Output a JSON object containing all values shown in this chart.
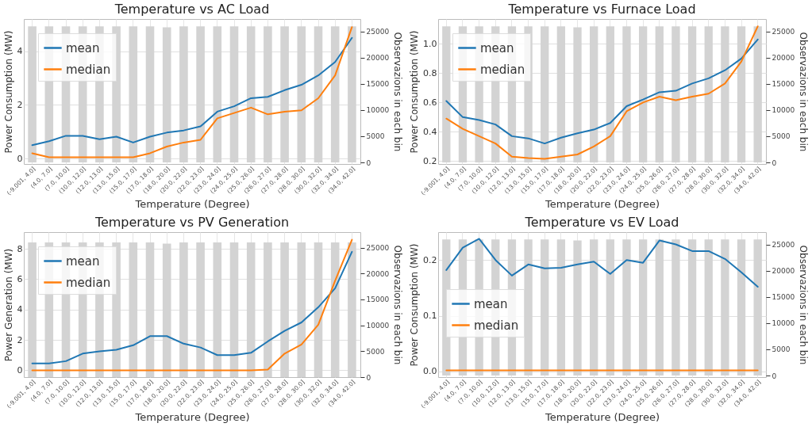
{
  "chart_data": [
    {
      "type": "line",
      "title": "Temperature   vs   AC Load",
      "xlabel": "Temperature (Degree)",
      "ylabel": "Power Consumption (MW)",
      "y2label": "Observazions in each bin",
      "categories": [
        "(-9.001, 4.0]",
        "(4.0, 7.0]",
        "(7.0, 10.0]",
        "(10.0, 12.0]",
        "(12.0, 13.0]",
        "(13.0, 15.0]",
        "(15.0, 17.0]",
        "(17.0, 18.0]",
        "(18.0, 20.0]",
        "(20.0, 22.0]",
        "(22.0, 23.0]",
        "(23.0, 24.0]",
        "(24.0, 25.0]",
        "(25.0, 26.0]",
        "(26.0, 27.0]",
        "(27.0, 28.0]",
        "(28.0, 30.0]",
        "(30.0, 32.0]",
        "(32.0, 34.0]",
        "(34.0, 42.0]"
      ],
      "series": [
        {
          "type": "bar",
          "axis": "y2",
          "color": "#d3d3d3",
          "values": [
            26000,
            26000,
            26000,
            26000,
            26000,
            26000,
            26000,
            26000,
            25800,
            26000,
            26000,
            26000,
            26000,
            26000,
            26000,
            26000,
            26000,
            26000,
            26000,
            26000
          ]
        },
        {
          "name": "mean",
          "color": "#1f77b4",
          "values": [
            0.5,
            0.65,
            0.85,
            0.85,
            0.72,
            0.82,
            0.6,
            0.82,
            0.97,
            1.05,
            1.2,
            1.75,
            1.95,
            2.25,
            2.3,
            2.55,
            2.75,
            3.1,
            3.6,
            4.5
          ]
        },
        {
          "name": "median",
          "color": "#ff7f0e",
          "values": [
            0.2,
            0.05,
            0.05,
            0.05,
            0.05,
            0.05,
            0.05,
            0.2,
            0.45,
            0.6,
            0.7,
            1.5,
            1.7,
            1.9,
            1.65,
            1.75,
            1.8,
            2.25,
            3.1,
            4.9
          ]
        }
      ],
      "ylim": [
        -0.2,
        5.2
      ],
      "yticks": [
        0,
        2,
        4
      ],
      "y2lim": [
        -300,
        27400
      ],
      "y2ticks": [
        0,
        5000,
        10000,
        15000,
        20000,
        25000
      ],
      "grid": true,
      "legend": "top left"
    },
    {
      "type": "line",
      "title": "Temperature   vs   Furnace Load",
      "xlabel": "Temperature (Degree)",
      "ylabel": "Power Consumption (MW)",
      "y2label": "Observazions in each bin",
      "categories": [
        "(-9.001, 4.0]",
        "(4.0, 7.0]",
        "(7.0, 10.0]",
        "(10.0, 12.0]",
        "(12.0, 13.0]",
        "(13.0, 15.0]",
        "(15.0, 17.0]",
        "(17.0, 18.0]",
        "(18.0, 20.0]",
        "(20.0, 22.0]",
        "(22.0, 23.0]",
        "(23.0, 24.0]",
        "(24.0, 25.0]",
        "(25.0, 26.0]",
        "(26.0, 27.0]",
        "(27.0, 28.0]",
        "(28.0, 30.0]",
        "(30.0, 32.0]",
        "(32.0, 34.0]",
        "(34.0, 42.0]"
      ],
      "series": [
        {
          "type": "bar",
          "axis": "y2",
          "color": "#d3d3d3",
          "values": [
            26000,
            26000,
            26000,
            26000,
            26000,
            26000,
            26000,
            26000,
            25800,
            26000,
            26000,
            26000,
            26000,
            26000,
            26000,
            26000,
            26000,
            26000,
            26000,
            26000
          ]
        },
        {
          "name": "mean",
          "color": "#1f77b4",
          "values": [
            0.61,
            0.5,
            0.48,
            0.45,
            0.37,
            0.355,
            0.32,
            0.36,
            0.39,
            0.415,
            0.46,
            0.575,
            0.62,
            0.67,
            0.68,
            0.73,
            0.765,
            0.82,
            0.9,
            1.03
          ]
        },
        {
          "name": "median",
          "color": "#ff7f0e",
          "values": [
            0.49,
            0.42,
            0.37,
            0.32,
            0.23,
            0.22,
            0.215,
            0.23,
            0.245,
            0.3,
            0.37,
            0.54,
            0.6,
            0.64,
            0.615,
            0.64,
            0.66,
            0.73,
            0.88,
            1.12
          ]
        }
      ],
      "ylim": [
        0.18,
        1.17
      ],
      "yticks": [
        0.2,
        0.4,
        0.6,
        0.8,
        {
          "value": 1,
          "label": "1.0"
        }
      ],
      "y2lim": [
        -300,
        27400
      ],
      "y2ticks": [
        0,
        5000,
        10000,
        15000,
        20000,
        25000
      ],
      "grid": true,
      "legend": "top left"
    },
    {
      "type": "line",
      "title": "Temperature   vs   PV Generation",
      "xlabel": "Temperature (Degree)",
      "ylabel": "Power Generation (MW)",
      "y2label": "Observazions in each bin",
      "categories": [
        "(-9.001, 4.0]",
        "(4.0, 7.0]",
        "(7.0, 10.0]",
        "(10.0, 12.0]",
        "(12.0, 13.0]",
        "(13.0, 15.0]",
        "(15.0, 17.0]",
        "(17.0, 18.0]",
        "(18.0, 20.0]",
        "(20.0, 22.0]",
        "(22.0, 23.0]",
        "(23.0, 24.0]",
        "(24.0, 25.0]",
        "(25.0, 26.0]",
        "(26.0, 27.0]",
        "(27.0, 28.0]",
        "(28.0, 30.0]",
        "(30.0, 32.0]",
        "(32.0, 34.0]",
        "(34.0, 42.0]"
      ],
      "series": [
        {
          "type": "bar",
          "axis": "y2",
          "color": "#d3d3d3",
          "values": [
            26000,
            26000,
            26000,
            26000,
            26000,
            26000,
            26000,
            26000,
            25800,
            26000,
            26000,
            26000,
            26000,
            26000,
            26000,
            26000,
            26000,
            26000,
            26000,
            26000
          ]
        },
        {
          "name": "mean",
          "color": "#1f77b4",
          "values": [
            0.45,
            0.45,
            0.6,
            1.1,
            1.25,
            1.35,
            1.65,
            2.25,
            2.25,
            1.75,
            1.5,
            1.0,
            1.0,
            1.15,
            1.9,
            2.6,
            3.15,
            4.15,
            5.4,
            7.8
          ]
        },
        {
          "name": "median",
          "color": "#ff7f0e",
          "values": [
            0,
            0,
            0,
            0,
            0,
            0,
            0,
            0,
            0,
            0,
            0,
            0,
            0,
            0,
            0.05,
            1.1,
            1.7,
            3.0,
            5.9,
            8.6
          ]
        }
      ],
      "ylim": [
        -0.45,
        9.1
      ],
      "yticks": [
        0,
        2,
        4,
        6,
        8
      ],
      "y2lim": [
        0,
        28000
      ],
      "y2ticks": [
        0,
        5000,
        10000,
        15000,
        20000,
        25000
      ],
      "grid": true,
      "legend": "top left"
    },
    {
      "type": "line",
      "title": "Temperature   vs   EV Load",
      "xlabel": "Temperature (Degree)",
      "ylabel": "Power Consumption (MW)",
      "y2label": "Observazions in each bin",
      "categories": [
        "(-9.001, 4.0]",
        "(4.0, 7.0]",
        "(7.0, 10.0]",
        "(10.0, 12.0]",
        "(12.0, 13.0]",
        "(13.0, 15.0]",
        "(15.0, 17.0]",
        "(17.0, 18.0]",
        "(18.0, 20.0]",
        "(20.0, 22.0]",
        "(22.0, 23.0]",
        "(23.0, 24.0]",
        "(24.0, 25.0]",
        "(25.0, 26.0]",
        "(26.0, 27.0]",
        "(27.0, 28.0]",
        "(28.0, 30.0]",
        "(30.0, 32.0]",
        "(32.0, 34.0]",
        "(34.0, 42.0]"
      ],
      "series": [
        {
          "type": "bar",
          "axis": "y2",
          "color": "#d3d3d3",
          "values": [
            26000,
            26000,
            26000,
            26000,
            26000,
            26000,
            26000,
            26000,
            25800,
            26000,
            26000,
            26000,
            26000,
            26000,
            26000,
            26000,
            26000,
            26000,
            26000,
            26000
          ]
        },
        {
          "name": "mean",
          "color": "#1f77b4",
          "values": [
            0.182,
            0.222,
            0.238,
            0.2,
            0.172,
            0.192,
            0.185,
            0.186,
            0.192,
            0.197,
            0.175,
            0.2,
            0.195,
            0.235,
            0.228,
            0.216,
            0.216,
            0.202,
            0.178,
            0.152
          ]
        },
        {
          "name": "median",
          "color": "#ff7f0e",
          "values": [
            0.002,
            0.002,
            0.002,
            0.002,
            0.002,
            0.002,
            0.002,
            0.002,
            0.002,
            0.002,
            0.002,
            0.002,
            0.002,
            0.002,
            0.002,
            0.002,
            0.002,
            0.002,
            0.002,
            0.002
          ]
        }
      ],
      "ylim": [
        -0.01,
        0.25
      ],
      "yticks": [
        {
          "value": 0,
          "label": "0.0"
        },
        0.1,
        0.2
      ],
      "y2lim": [
        -300,
        27400
      ],
      "y2ticks": [
        0,
        5000,
        10000,
        15000,
        20000,
        25000
      ],
      "grid": true,
      "legend": "left"
    }
  ]
}
